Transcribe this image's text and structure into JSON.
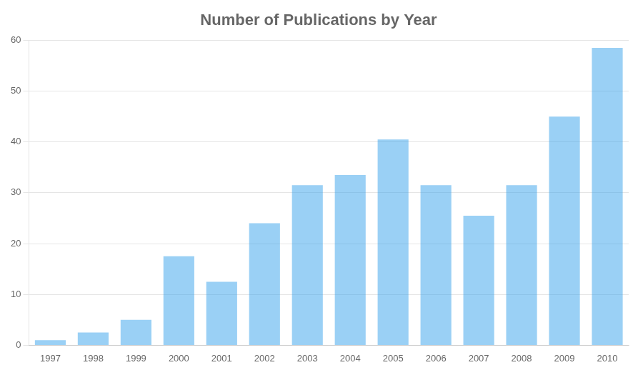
{
  "chart_data": {
    "type": "bar",
    "title": "Number of Publications by Year",
    "categories": [
      "1997",
      "1998",
      "1999",
      "2000",
      "2001",
      "2002",
      "2003",
      "2004",
      "2005",
      "2006",
      "2007",
      "2008",
      "2009",
      "2010"
    ],
    "values": [
      1,
      2.5,
      5,
      17.5,
      12.5,
      24,
      31.5,
      33.5,
      40.5,
      31.5,
      25.5,
      31.5,
      45,
      58.5
    ],
    "ylim": [
      0,
      60
    ],
    "yticks": [
      0,
      10,
      20,
      30,
      40,
      50,
      60
    ],
    "grid": true
  }
}
